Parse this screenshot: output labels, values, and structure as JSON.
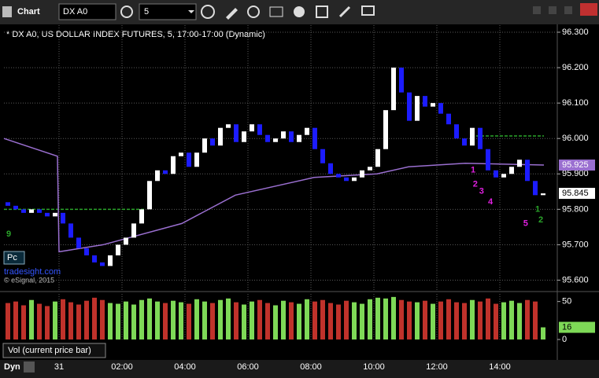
{
  "toolbar": {
    "title": "Chart",
    "symbol": "DX A0",
    "interval": "5"
  },
  "chart_data": {
    "type": "candlestick",
    "title": "* DX A0, US DOLLAR INDEX FUTURES, 5, 17:00-17:00 (Dynamic)",
    "x": [
      -1.625,
      -1.375,
      -1.125,
      -0.875,
      -0.625,
      -0.375,
      -0.125,
      0.125,
      0.375,
      0.625,
      0.875,
      1.125,
      1.375,
      1.625,
      1.875,
      2.125,
      2.375,
      2.625,
      2.875,
      3.125,
      3.375,
      3.625,
      3.875,
      4.125,
      4.375,
      4.625,
      4.875,
      5.125,
      5.375,
      5.625,
      5.875,
      6.125,
      6.375,
      6.625,
      6.875,
      7.125,
      7.375,
      7.625,
      7.875,
      8.125,
      8.375,
      8.625,
      8.875,
      9.125,
      9.375,
      9.625,
      9.875,
      10.125,
      10.375,
      10.625,
      10.875,
      11.125,
      11.375,
      11.625,
      11.875,
      12.125,
      12.375,
      12.625,
      12.875,
      13.125,
      13.375,
      13.625,
      13.875,
      14.125,
      14.375,
      14.625,
      14.875,
      15.125,
      15.375
    ],
    "open": [
      95.82,
      95.81,
      95.8,
      95.79,
      95.8,
      95.79,
      95.78,
      95.79,
      95.76,
      95.72,
      95.69,
      95.67,
      95.65,
      95.64,
      95.67,
      95.7,
      95.72,
      95.76,
      95.8,
      95.88,
      95.91,
      95.9,
      95.95,
      95.96,
      95.92,
      95.96,
      96.0,
      95.98,
      96.03,
      96.04,
      95.99,
      96.02,
      96.04,
      96.01,
      95.99,
      96.0,
      96.02,
      95.99,
      96.01,
      96.03,
      95.97,
      95.93,
      95.9,
      95.89,
      95.88,
      95.89,
      95.91,
      95.92,
      95.97,
      96.08,
      96.2,
      96.13,
      96.05,
      96.12,
      96.09,
      96.1,
      96.07,
      96.04,
      96.0,
      95.98,
      96.03,
      95.97,
      95.91,
      95.89,
      95.9,
      95.92,
      95.94,
      95.88,
      95.84
    ],
    "close": [
      95.81,
      95.8,
      95.79,
      95.8,
      95.79,
      95.78,
      95.79,
      95.76,
      95.72,
      95.69,
      95.67,
      95.65,
      95.64,
      95.67,
      95.7,
      95.72,
      95.76,
      95.8,
      95.88,
      95.91,
      95.9,
      95.95,
      95.96,
      95.92,
      95.96,
      96.0,
      95.98,
      96.03,
      96.04,
      95.99,
      96.02,
      96.04,
      96.01,
      95.99,
      96.0,
      96.02,
      95.99,
      96.01,
      96.03,
      95.97,
      95.93,
      95.9,
      95.89,
      95.88,
      95.89,
      95.91,
      95.92,
      95.97,
      96.08,
      96.2,
      96.13,
      96.05,
      96.12,
      96.09,
      96.1,
      96.07,
      96.04,
      96.0,
      95.98,
      96.03,
      95.97,
      95.91,
      95.89,
      95.9,
      95.92,
      95.94,
      95.88,
      95.84,
      95.845
    ],
    "up_color": "#ffffff",
    "down_color": "#1c1cff",
    "xlim": [
      -1.75,
      15.825
    ],
    "xticks": [
      {
        "value": 0,
        "label": "31"
      },
      {
        "value": 2,
        "label": "02:00"
      },
      {
        "value": 4,
        "label": "04:00"
      },
      {
        "value": 6,
        "label": "06:00"
      },
      {
        "value": 8,
        "label": "08:00"
      },
      {
        "value": 10,
        "label": "10:00"
      },
      {
        "value": 12,
        "label": "12:00"
      },
      {
        "value": 14,
        "label": "14:00"
      }
    ],
    "ylim": [
      95.57,
      96.32
    ],
    "yticks": [
      {
        "value": 96.3,
        "label": "96.300"
      },
      {
        "value": 96.2,
        "label": "96.200"
      },
      {
        "value": 96.1,
        "label": "96.100"
      },
      {
        "value": 96.0,
        "label": "96.000"
      },
      {
        "value": 95.9,
        "label": "95.900"
      },
      {
        "value": 95.8,
        "label": "95.800"
      },
      {
        "value": 95.7,
        "label": "95.700"
      },
      {
        "value": 95.6,
        "label": "95.600"
      }
    ],
    "grid": true,
    "ma": {
      "color": "#9a6fd0",
      "x": [
        -1.75,
        -0.05,
        0,
        1.4,
        3.9,
        5.6,
        8.1,
        10.1,
        11.1,
        12.9,
        15.4
      ],
      "values": [
        96.0,
        95.95,
        95.68,
        95.7,
        95.76,
        95.84,
        95.89,
        95.9,
        95.92,
        95.93,
        95.925
      ]
    },
    "levels": [
      {
        "color": "#2aa52a",
        "y": 95.8,
        "x": [
          -1.75,
          2.7
        ]
      },
      {
        "color": "#2aa52a",
        "y": 96.007,
        "x": [
          13.1,
          15.4
        ]
      }
    ],
    "annotations": [
      {
        "text": "1",
        "color": "#e020e0",
        "x": 13.15,
        "y": 95.91
      },
      {
        "text": "2",
        "color": "#e020e0",
        "x": 13.22,
        "y": 95.87
      },
      {
        "text": "3",
        "color": "#e020e0",
        "x": 13.42,
        "y": 95.85
      },
      {
        "text": "4",
        "color": "#e020e0",
        "x": 13.7,
        "y": 95.82
      },
      {
        "text": "5",
        "color": "#e020e0",
        "x": 14.82,
        "y": 95.76
      },
      {
        "text": "1",
        "color": "#2aa52a",
        "x": 15.2,
        "y": 95.8
      },
      {
        "text": "2",
        "color": "#2aa52a",
        "x": 15.3,
        "y": 95.77
      },
      {
        "text": "9",
        "color": "#2aa52a",
        "x": -1.6,
        "y": 95.73
      }
    ],
    "watermark": [
      "Pc",
      "tradesight.com",
      "© eSignal, 2015"
    ],
    "volume": {
      "type": "bar",
      "title": "Vol (current price bar)",
      "up_color": "#7ed957",
      "down_color": "#c0322b",
      "values": [
        48,
        50,
        45,
        52,
        47,
        44,
        50,
        53,
        49,
        46,
        51,
        55,
        52,
        48,
        47,
        50,
        46,
        52,
        54,
        50,
        48,
        51,
        49,
        47,
        53,
        50,
        48,
        52,
        54,
        49,
        46,
        50,
        52,
        48,
        45,
        51,
        49,
        47,
        53,
        50,
        52,
        48,
        46,
        51,
        49,
        47,
        53,
        55,
        54,
        56,
        52,
        50,
        49,
        51,
        47,
        50,
        53,
        49,
        48,
        52,
        50,
        54,
        47,
        49,
        51,
        48,
        52,
        50,
        16
      ],
      "ylim": [
        0,
        60
      ],
      "yticks": [
        0,
        50
      ]
    }
  },
  "footer": {
    "mode": "Dyn"
  }
}
